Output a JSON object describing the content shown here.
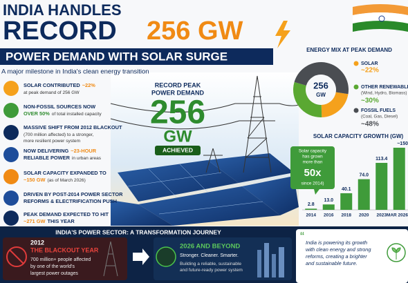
{
  "header": {
    "line1": "INDIA HANDLES",
    "line2": "RECORD",
    "highlight": "256 GW",
    "banner": "POWER DEMAND WITH SOLAR SURGE",
    "subtitle": "A major milestone in India's clean energy transition"
  },
  "highlights": [
    {
      "title": "SOLAR CONTRIBUTED",
      "accent": "~22%",
      "detail": "at peak demand of 256 GW"
    },
    {
      "title": "NON-FOSSIL SOURCES NOW",
      "accent": "OVER 50%",
      "detail": "of total installed capacity"
    },
    {
      "title": "MASSIVE SHIFT FROM 2012 BLACKOUT",
      "detail": [
        "(700 million affected) to a stronger,",
        "more resilient power system"
      ]
    },
    {
      "title": "NOW DELIVERING",
      "accent": "~23-HOUR",
      "title2": "RELIABLE POWER",
      "detail": "in urban areas"
    },
    {
      "title": "SOLAR CAPACITY EXPANDED TO",
      "accent": "~150 GW",
      "detail": "(as of March 2026)"
    },
    {
      "title": [
        "DRIVEN BY POST-2014 POWER SECTOR",
        "REFORMS & ELECTRIFICATION PUSH"
      ]
    },
    {
      "title": "PEAK DEMAND EXPECTED TO HIT",
      "accent": "~271 GW",
      "detail": "THIS YEAR"
    }
  ],
  "center": {
    "label": [
      "RECORD PEAK",
      "POWER DEMAND"
    ],
    "value": "256",
    "unit": "GW",
    "badge": "ACHIEVED"
  },
  "energy_mix": {
    "title": "ENERGY MIX AT PEAK DEMAND",
    "center_value": "256",
    "center_unit": "GW",
    "segments": [
      {
        "name": "SOLAR",
        "value": 22,
        "value_label": "~22%",
        "color": "#f5a11c"
      },
      {
        "name": "OTHER RENEWABLES",
        "note": "(Wind, Hydro, Biomass)",
        "value": 30,
        "value_label": "~30%",
        "color": "#5aa832"
      },
      {
        "name": "FOSSIL FUELS",
        "note": "(Coal, Gas, Diesel)",
        "value": 48,
        "value_label": "~48%",
        "color": "#4a4d52"
      }
    ]
  },
  "solar_growth": {
    "type": "bar",
    "title": "SOLAR CAPACITY GROWTH (GW)",
    "categories": [
      "2014",
      "2016",
      "2018",
      "2020",
      "2023",
      "MAR 2026"
    ],
    "values": [
      2.8,
      13,
      40.1,
      74,
      113.4,
      150
    ],
    "value_labels": [
      "2.8",
      "13.0",
      "40.1",
      "74.0",
      "113.4",
      "~150"
    ],
    "color": "#3f9b3a",
    "callout": [
      "Solar capacity",
      "has grown",
      "more than",
      "50x",
      "since 2014)"
    ]
  },
  "journey": {
    "title": "INDIA'S POWER SECTOR: A TRANSFORMATION JOURNEY",
    "past": {
      "year": "2012",
      "label": "THE BLACKOUT YEAR",
      "detail": [
        "700 million+ people affected",
        "by one of the world's",
        "largest power outages"
      ]
    },
    "future": {
      "label": "2026 AND BEYOND",
      "tagline": "Stronger. Cleaner. Smarter.",
      "detail": [
        "Building a reliable, sustainable",
        "and future-ready power system"
      ]
    }
  },
  "quote": {
    "mark": "“",
    "lines": [
      "India is powering its growth",
      "with clean energy and strong",
      "reforms, creating a brighter",
      "and sustainable future."
    ]
  }
}
